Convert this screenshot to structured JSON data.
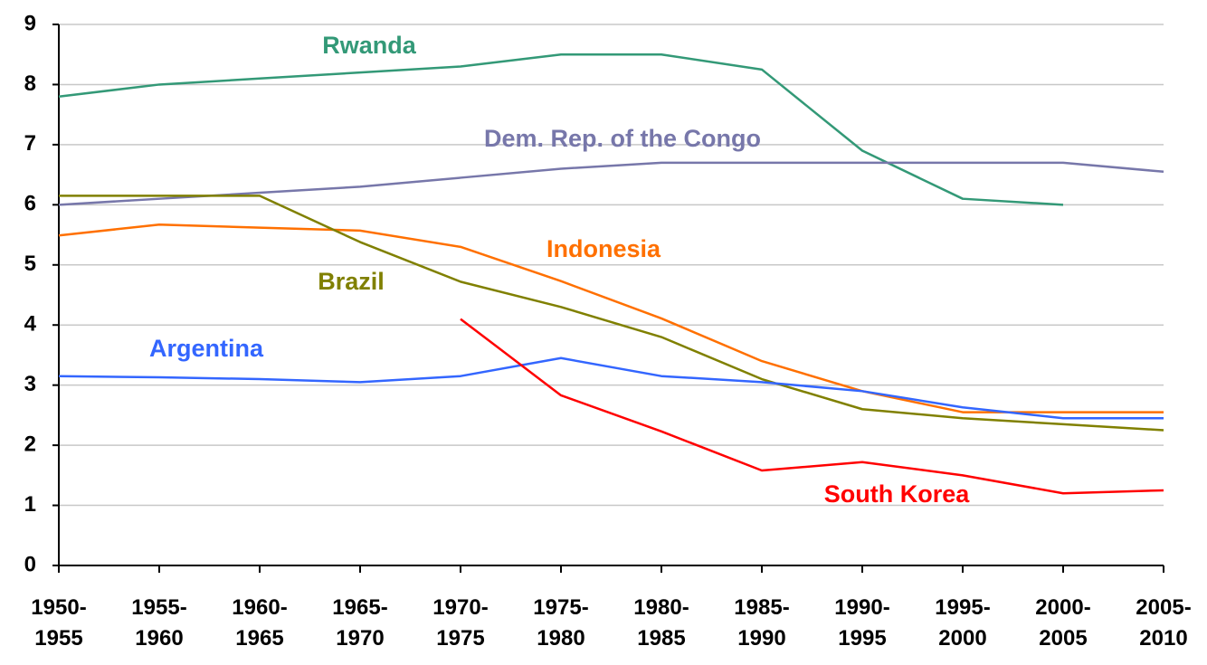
{
  "chart_data": {
    "type": "line",
    "categories": [
      "1950-1955",
      "1955-1960",
      "1960-1965",
      "1965-1970",
      "1970-1975",
      "1975-1980",
      "1980-1985",
      "1985-1990",
      "1990-1995",
      "1995-2000",
      "2000-2005",
      "2005-2010"
    ],
    "series": [
      {
        "name": "Rwanda",
        "color": "#339977",
        "values": [
          7.8,
          8.0,
          8.1,
          8.2,
          8.3,
          8.5,
          8.5,
          8.25,
          6.9,
          6.1,
          6.0,
          null
        ]
      },
      {
        "name": "Dem. Rep. of the Congo",
        "color": "#7777aa",
        "values": [
          6.0,
          6.1,
          6.2,
          6.3,
          6.45,
          6.6,
          6.7,
          6.7,
          6.7,
          6.7,
          6.7,
          6.55
        ]
      },
      {
        "name": "Indonesia",
        "color": "#ff7000",
        "values": [
          5.49,
          5.67,
          5.62,
          5.57,
          5.3,
          4.73,
          4.11,
          3.4,
          2.9,
          2.55,
          2.55,
          2.55
        ]
      },
      {
        "name": "Brazil",
        "color": "#808000",
        "values": [
          6.15,
          6.15,
          6.15,
          5.38,
          4.72,
          4.3,
          3.8,
          3.1,
          2.6,
          2.45,
          2.35,
          2.25
        ]
      },
      {
        "name": "Argentina",
        "color": "#3366ff",
        "values": [
          3.15,
          3.13,
          3.1,
          3.05,
          3.15,
          3.45,
          3.15,
          3.05,
          2.9,
          2.63,
          2.45,
          2.45
        ]
      },
      {
        "name": "South Korea",
        "color": "#ff0000",
        "values": [
          null,
          null,
          null,
          null,
          4.1,
          2.83,
          2.23,
          1.58,
          1.72,
          1.5,
          1.2,
          1.25
        ]
      }
    ],
    "ylim": [
      0,
      9
    ],
    "yticks": [
      0,
      1,
      2,
      3,
      4,
      5,
      6,
      7,
      8,
      9
    ],
    "grid": true
  }
}
